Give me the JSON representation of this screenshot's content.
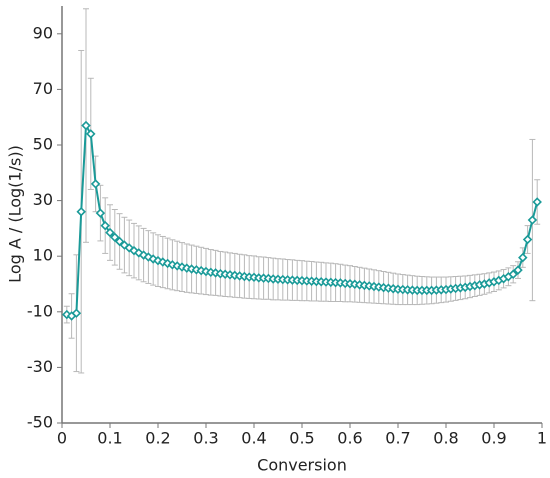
{
  "chart_data": {
    "type": "line",
    "xlabel": "Conversion",
    "ylabel": "Log A / (Log(1/s))",
    "x": [
      0.01,
      0.02,
      0.03,
      0.04,
      0.05,
      0.06,
      0.07,
      0.08,
      0.09,
      0.1,
      0.11,
      0.12,
      0.13,
      0.14,
      0.15,
      0.16,
      0.17,
      0.18,
      0.19,
      0.2,
      0.21,
      0.22,
      0.23,
      0.24,
      0.25,
      0.26,
      0.27,
      0.28,
      0.29,
      0.3,
      0.31,
      0.32,
      0.33,
      0.34,
      0.35,
      0.36,
      0.37,
      0.38,
      0.39,
      0.4,
      0.41,
      0.42,
      0.43,
      0.44,
      0.45,
      0.46,
      0.47,
      0.48,
      0.49,
      0.5,
      0.51,
      0.52,
      0.53,
      0.54,
      0.55,
      0.56,
      0.57,
      0.58,
      0.59,
      0.6,
      0.61,
      0.62,
      0.63,
      0.64,
      0.65,
      0.66,
      0.67,
      0.68,
      0.69,
      0.7,
      0.71,
      0.72,
      0.73,
      0.74,
      0.75,
      0.76,
      0.77,
      0.78,
      0.79,
      0.8,
      0.81,
      0.82,
      0.83,
      0.84,
      0.85,
      0.86,
      0.87,
      0.88,
      0.89,
      0.9,
      0.91,
      0.92,
      0.93,
      0.94,
      0.95,
      0.96,
      0.97,
      0.98,
      0.99
    ],
    "series": [
      {
        "color": "#1a9a98",
        "error_color": "#b8b8b8",
        "values": [
          -11,
          -11.5,
          -10.5,
          26,
          57,
          54,
          36,
          25.5,
          21,
          18.5,
          16.8,
          15.3,
          14,
          13,
          12,
          11.2,
          10.4,
          9.7,
          9,
          8.4,
          7.9,
          7.4,
          6.9,
          6.5,
          6.1,
          5.7,
          5.4,
          5.1,
          4.8,
          4.5,
          4.2,
          4,
          3.7,
          3.5,
          3.3,
          3.1,
          2.9,
          2.7,
          2.5,
          2.4,
          2.2,
          2.1,
          2,
          1.8,
          1.7,
          1.6,
          1.5,
          1.4,
          1.3,
          1.2,
          1.1,
          1,
          0.9,
          0.8,
          0.7,
          0.6,
          0.5,
          0.4,
          0.2,
          0.1,
          -0.1,
          -0.3,
          -0.5,
          -0.7,
          -0.9,
          -1.1,
          -1.3,
          -1.5,
          -1.7,
          -1.9,
          -2,
          -2.1,
          -2.2,
          -2.3,
          -2.3,
          -2.3,
          -2.3,
          -2.2,
          -2.1,
          -2,
          -1.8,
          -1.6,
          -1.4,
          -1.2,
          -0.9,
          -0.6,
          -0.3,
          0,
          0.4,
          0.8,
          1.3,
          1.9,
          2.6,
          3.5,
          5,
          9.5,
          16,
          23,
          29.5
        ],
        "errors": [
          3,
          8,
          21,
          58,
          42,
          20,
          10,
          10,
          10,
          10,
          10,
          10,
          10,
          10,
          9.8,
          9.7,
          9.6,
          9.5,
          9.4,
          9.3,
          9.2,
          9.1,
          9,
          8.9,
          8.8,
          8.7,
          8.6,
          8.5,
          8.4,
          8.3,
          8.2,
          8.1,
          8,
          8,
          7.9,
          7.9,
          7.8,
          7.8,
          7.7,
          7.7,
          7.6,
          7.6,
          7.5,
          7.5,
          7.4,
          7.4,
          7.3,
          7.3,
          7.2,
          7.2,
          7.1,
          7.1,
          7,
          7,
          6.9,
          6.9,
          6.8,
          6.7,
          6.6,
          6.5,
          6.4,
          6.3,
          6.2,
          6.1,
          6,
          5.9,
          5.8,
          5.7,
          5.6,
          5.5,
          5.4,
          5.3,
          5.2,
          5.1,
          5,
          4.9,
          4.8,
          4.7,
          4.6,
          4.5,
          4.4,
          4.3,
          4.2,
          4.1,
          4,
          3.9,
          3.8,
          3.7,
          3.6,
          3.5,
          3.4,
          3.3,
          3.2,
          3.1,
          3,
          3.5,
          5,
          29,
          8
        ]
      }
    ],
    "xlim": [
      0,
      1
    ],
    "xticks": [
      0,
      0.1,
      0.2,
      0.3,
      0.4,
      0.5,
      0.6,
      0.7,
      0.8,
      0.9,
      1
    ],
    "ylim": [
      -50,
      100
    ],
    "yticks": [
      -50,
      -30,
      -10,
      10,
      30,
      50,
      70,
      90
    ]
  }
}
